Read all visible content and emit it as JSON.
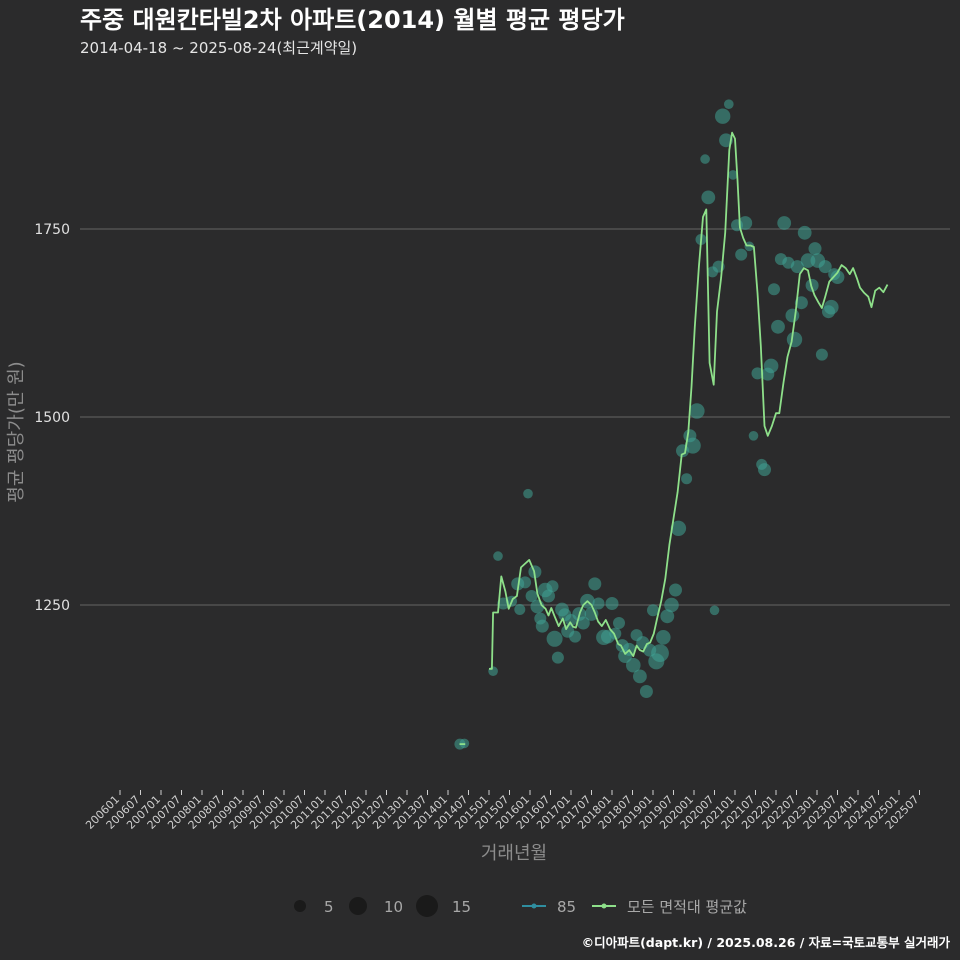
{
  "chart_data": {
    "type": "scatter",
    "title": "주중 대원칸타빌2차 아파트(2014) 월별 평균 평당가",
    "subtitle": "2014-04-18 ~ 2025-08-24(최근계약일)",
    "xlabel": "거래년월",
    "ylabel": "평균 평당가(만 원)",
    "ylim": [
      1000,
      2000
    ],
    "yticks": [
      1250,
      1500,
      1750
    ],
    "ytick_labels": [
      "1250",
      "1500",
      "1750"
    ],
    "x_domain": [
      2006.0,
      2025.6
    ],
    "xtick_labels": [
      "200601",
      "200607",
      "200701",
      "200707",
      "200801",
      "200807",
      "200901",
      "200907",
      "201001",
      "201007",
      "201101",
      "201107",
      "201201",
      "201207",
      "201301",
      "201307",
      "201401",
      "201407",
      "201501",
      "201507",
      "201601",
      "201607",
      "201701",
      "201707",
      "201801",
      "201807",
      "201901",
      "201907",
      "202001",
      "202007",
      "202101",
      "202107",
      "202201",
      "202207",
      "202301",
      "202307",
      "202401",
      "202407",
      "202501",
      "202507"
    ],
    "colors": {
      "point": "#3fa293",
      "line": "#8ee08a",
      "series85": "#2f8ea0",
      "background": "#2b2b2c",
      "grid": "#5a5a5a"
    },
    "series": [
      {
        "name": "85",
        "kind": "points",
        "points": [
          [
            2014.29,
            1065,
            3
          ],
          [
            2014.4,
            1066,
            2
          ],
          [
            2015.1,
            1162,
            2
          ],
          [
            2015.22,
            1315,
            2
          ],
          [
            2015.35,
            1252,
            4
          ],
          [
            2015.55,
            1255,
            3
          ],
          [
            2015.7,
            1278,
            5
          ],
          [
            2015.75,
            1244,
            3
          ],
          [
            2015.88,
            1280,
            4
          ],
          [
            2015.95,
            1398,
            2
          ],
          [
            2016.04,
            1262,
            4
          ],
          [
            2016.12,
            1294,
            5
          ],
          [
            2016.18,
            1248,
            6
          ],
          [
            2016.25,
            1232,
            4
          ],
          [
            2016.3,
            1222,
            5
          ],
          [
            2016.37,
            1270,
            7
          ],
          [
            2016.45,
            1262,
            5
          ],
          [
            2016.55,
            1275,
            4
          ],
          [
            2016.6,
            1205,
            9
          ],
          [
            2016.68,
            1180,
            4
          ],
          [
            2016.78,
            1244,
            6
          ],
          [
            2016.85,
            1237,
            5
          ],
          [
            2016.92,
            1215,
            5
          ],
          [
            2017.0,
            1230,
            4
          ],
          [
            2017.1,
            1208,
            4
          ],
          [
            2017.2,
            1238,
            6
          ],
          [
            2017.3,
            1226,
            5
          ],
          [
            2017.4,
            1255,
            7
          ],
          [
            2017.5,
            1238,
            6
          ],
          [
            2017.58,
            1278,
            5
          ],
          [
            2017.67,
            1252,
            4
          ],
          [
            2017.8,
            1207,
            8
          ],
          [
            2017.9,
            1208,
            6
          ],
          [
            2018.0,
            1252,
            5
          ],
          [
            2018.08,
            1212,
            4
          ],
          [
            2018.17,
            1226,
            4
          ],
          [
            2018.25,
            1196,
            5
          ],
          [
            2018.32,
            1182,
            6
          ],
          [
            2018.42,
            1191,
            5
          ],
          [
            2018.52,
            1170,
            7
          ],
          [
            2018.6,
            1210,
            4
          ],
          [
            2018.68,
            1155,
            6
          ],
          [
            2018.75,
            1200,
            5
          ],
          [
            2018.84,
            1135,
            5
          ],
          [
            2018.92,
            1190,
            5
          ],
          [
            2019.0,
            1243,
            4
          ],
          [
            2019.08,
            1175,
            9
          ],
          [
            2019.17,
            1186,
            12
          ],
          [
            2019.25,
            1207,
            7
          ],
          [
            2019.35,
            1235,
            6
          ],
          [
            2019.45,
            1250,
            7
          ],
          [
            2019.55,
            1270,
            5
          ],
          [
            2019.62,
            1352,
            8
          ],
          [
            2019.72,
            1455,
            5
          ],
          [
            2019.82,
            1418,
            3
          ],
          [
            2019.9,
            1475,
            5
          ],
          [
            2019.97,
            1462,
            9
          ],
          [
            2020.07,
            1508,
            8
          ],
          [
            2020.17,
            1736,
            3
          ],
          [
            2020.27,
            1843,
            2
          ],
          [
            2020.35,
            1792,
            6
          ],
          [
            2020.45,
            1693,
            3
          ],
          [
            2020.5,
            1243,
            2
          ],
          [
            2020.6,
            1700,
            4
          ],
          [
            2020.7,
            1900,
            8
          ],
          [
            2020.78,
            1868,
            6
          ],
          [
            2020.85,
            1916,
            2
          ],
          [
            2020.95,
            1822,
            2
          ],
          [
            2021.05,
            1755,
            4
          ],
          [
            2021.15,
            1716,
            4
          ],
          [
            2021.25,
            1758,
            6
          ],
          [
            2021.35,
            1727,
            2
          ],
          [
            2021.45,
            1475,
            2
          ],
          [
            2021.55,
            1558,
            4
          ],
          [
            2021.65,
            1437,
            3
          ],
          [
            2021.72,
            1430,
            5
          ],
          [
            2021.8,
            1557,
            5
          ],
          [
            2021.88,
            1568,
            7
          ],
          [
            2021.95,
            1670,
            4
          ],
          [
            2022.05,
            1620,
            6
          ],
          [
            2022.12,
            1710,
            4
          ],
          [
            2022.2,
            1758,
            6
          ],
          [
            2022.3,
            1705,
            4
          ],
          [
            2022.4,
            1635,
            6
          ],
          [
            2022.45,
            1603,
            8
          ],
          [
            2022.52,
            1700,
            5
          ],
          [
            2022.62,
            1652,
            5
          ],
          [
            2022.7,
            1745,
            6
          ],
          [
            2022.78,
            1708,
            7
          ],
          [
            2022.88,
            1675,
            5
          ],
          [
            2022.95,
            1724,
            5
          ],
          [
            2023.02,
            1708,
            7
          ],
          [
            2023.12,
            1583,
            4
          ],
          [
            2023.2,
            1700,
            5
          ],
          [
            2023.28,
            1640,
            5
          ],
          [
            2023.35,
            1646,
            7
          ],
          [
            2023.42,
            1690,
            4
          ],
          [
            2023.5,
            1686,
            6
          ]
        ]
      },
      {
        "name": "모든 면적대 평균값",
        "kind": "line",
        "points": [
          [
            2014.28,
            1065
          ],
          [
            2014.42,
            1065
          ],
          [
            2015.0,
            1165
          ],
          [
            2015.07,
            1165
          ],
          [
            2015.1,
            1240
          ],
          [
            2015.22,
            1240
          ],
          [
            2015.3,
            1288
          ],
          [
            2015.4,
            1268
          ],
          [
            2015.48,
            1245
          ],
          [
            2015.58,
            1258
          ],
          [
            2015.68,
            1262
          ],
          [
            2015.78,
            1300
          ],
          [
            2015.88,
            1305
          ],
          [
            2015.98,
            1310
          ],
          [
            2016.1,
            1295
          ],
          [
            2016.18,
            1265
          ],
          [
            2016.28,
            1250
          ],
          [
            2016.38,
            1245
          ],
          [
            2016.45,
            1236
          ],
          [
            2016.52,
            1246
          ],
          [
            2016.6,
            1235
          ],
          [
            2016.7,
            1222
          ],
          [
            2016.8,
            1232
          ],
          [
            2016.88,
            1218
          ],
          [
            2016.98,
            1227
          ],
          [
            2017.05,
            1221
          ],
          [
            2017.12,
            1220
          ],
          [
            2017.22,
            1240
          ],
          [
            2017.3,
            1250
          ],
          [
            2017.4,
            1255
          ],
          [
            2017.5,
            1250
          ],
          [
            2017.58,
            1240
          ],
          [
            2017.66,
            1228
          ],
          [
            2017.75,
            1222
          ],
          [
            2017.85,
            1230
          ],
          [
            2017.95,
            1218
          ],
          [
            2018.05,
            1212
          ],
          [
            2018.15,
            1198
          ],
          [
            2018.22,
            1196
          ],
          [
            2018.32,
            1185
          ],
          [
            2018.42,
            1190
          ],
          [
            2018.52,
            1182
          ],
          [
            2018.6,
            1196
          ],
          [
            2018.68,
            1190
          ],
          [
            2018.76,
            1188
          ],
          [
            2018.85,
            1198
          ],
          [
            2018.93,
            1200
          ],
          [
            2019.02,
            1212
          ],
          [
            2019.1,
            1232
          ],
          [
            2019.2,
            1255
          ],
          [
            2019.3,
            1285
          ],
          [
            2019.4,
            1330
          ],
          [
            2019.5,
            1365
          ],
          [
            2019.6,
            1400
          ],
          [
            2019.7,
            1450
          ],
          [
            2019.78,
            1452
          ],
          [
            2019.86,
            1480
          ],
          [
            2019.94,
            1540
          ],
          [
            2020.02,
            1620
          ],
          [
            2020.12,
            1700
          ],
          [
            2020.22,
            1766
          ],
          [
            2020.3,
            1776
          ],
          [
            2020.38,
            1572
          ],
          [
            2020.48,
            1543
          ],
          [
            2020.56,
            1640
          ],
          [
            2020.66,
            1685
          ],
          [
            2020.76,
            1745
          ],
          [
            2020.86,
            1855
          ],
          [
            2020.93,
            1878
          ],
          [
            2021.0,
            1870
          ],
          [
            2021.06,
            1815
          ],
          [
            2021.12,
            1752
          ],
          [
            2021.2,
            1738
          ],
          [
            2021.28,
            1728
          ],
          [
            2021.38,
            1728
          ],
          [
            2021.46,
            1726
          ],
          [
            2021.55,
            1665
          ],
          [
            2021.63,
            1595
          ],
          [
            2021.72,
            1488
          ],
          [
            2021.8,
            1475
          ],
          [
            2021.9,
            1488
          ],
          [
            2022.0,
            1505
          ],
          [
            2022.08,
            1505
          ],
          [
            2022.18,
            1545
          ],
          [
            2022.28,
            1580
          ],
          [
            2022.38,
            1600
          ],
          [
            2022.48,
            1640
          ],
          [
            2022.58,
            1690
          ],
          [
            2022.68,
            1698
          ],
          [
            2022.78,
            1695
          ],
          [
            2022.86,
            1674
          ],
          [
            2022.94,
            1662
          ],
          [
            2023.04,
            1652
          ],
          [
            2023.12,
            1645
          ],
          [
            2023.2,
            1660
          ],
          [
            2023.3,
            1680
          ],
          [
            2023.4,
            1686
          ],
          [
            2023.5,
            1692
          ],
          [
            2023.6,
            1702
          ],
          [
            2023.7,
            1698
          ],
          [
            2023.8,
            1690
          ],
          [
            2023.88,
            1698
          ],
          [
            2023.97,
            1685
          ],
          [
            2024.05,
            1672
          ],
          [
            2024.15,
            1665
          ],
          [
            2024.25,
            1660
          ],
          [
            2024.33,
            1646
          ],
          [
            2024.42,
            1668
          ],
          [
            2024.52,
            1672
          ],
          [
            2024.62,
            1666
          ],
          [
            2024.72,
            1676
          ]
        ]
      }
    ],
    "legend": {
      "sizes": [
        5,
        10,
        15
      ],
      "size_labels": [
        "5",
        "10",
        "15"
      ],
      "series_labels": [
        "85",
        "모든 면적대 평균값"
      ]
    },
    "footer": "©디아파트(dapt.kr) / 2025.08.26 / 자료=국토교통부 실거래가"
  }
}
